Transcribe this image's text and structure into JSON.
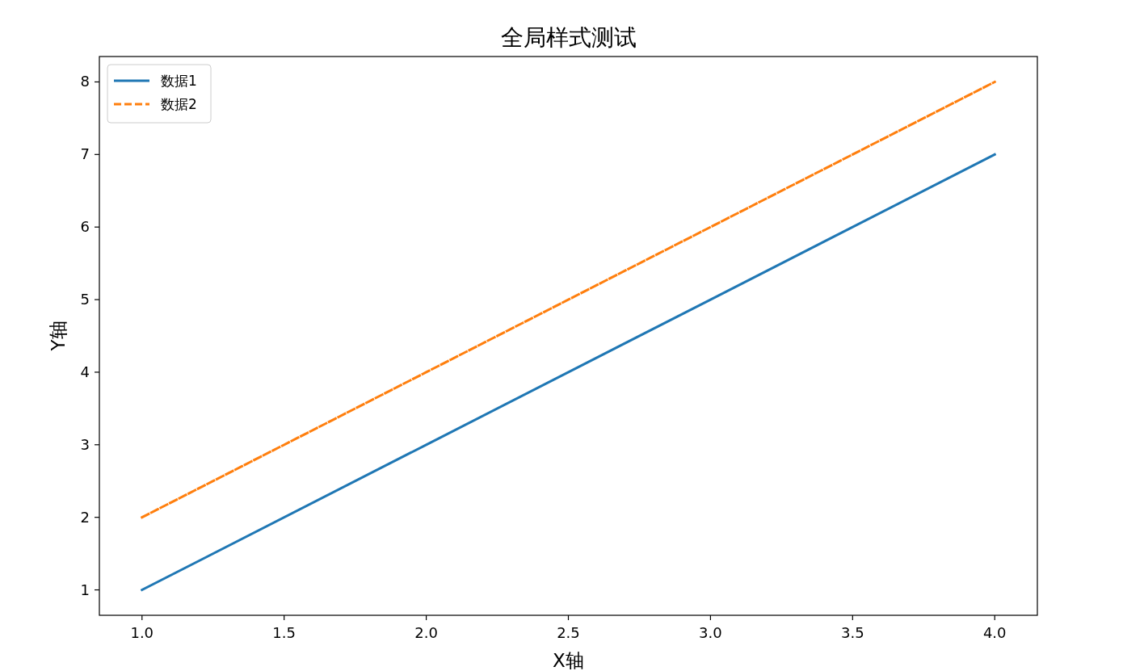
{
  "chart_data": {
    "type": "line",
    "title": "全局样式测试",
    "xlabel": "X轴",
    "ylabel": "Y轴",
    "x": [
      1,
      2,
      3,
      4
    ],
    "series": [
      {
        "name": "数据1",
        "color": "#1f77b4",
        "line_style": "solid",
        "values": [
          1,
          3,
          5,
          7
        ]
      },
      {
        "name": "数据2",
        "color": "#ff7f0e",
        "line_style": "dashed",
        "values": [
          2,
          4,
          6,
          8
        ]
      }
    ],
    "xlim": [
      0.85,
      4.15
    ],
    "ylim": [
      0.65,
      8.35
    ],
    "xticks": [
      {
        "value": 1,
        "label": "1.0"
      },
      {
        "value": 1.5,
        "label": "1.5"
      },
      {
        "value": 2,
        "label": "2.0"
      },
      {
        "value": 2.5,
        "label": "2.5"
      },
      {
        "value": 3,
        "label": "3.0"
      },
      {
        "value": 3.5,
        "label": "3.5"
      },
      {
        "value": 4,
        "label": "4.0"
      }
    ],
    "yticks": [
      1,
      2,
      3,
      4,
      5,
      6,
      7,
      8
    ],
    "legend": "top left",
    "grid": false,
    "marker": "none"
  }
}
